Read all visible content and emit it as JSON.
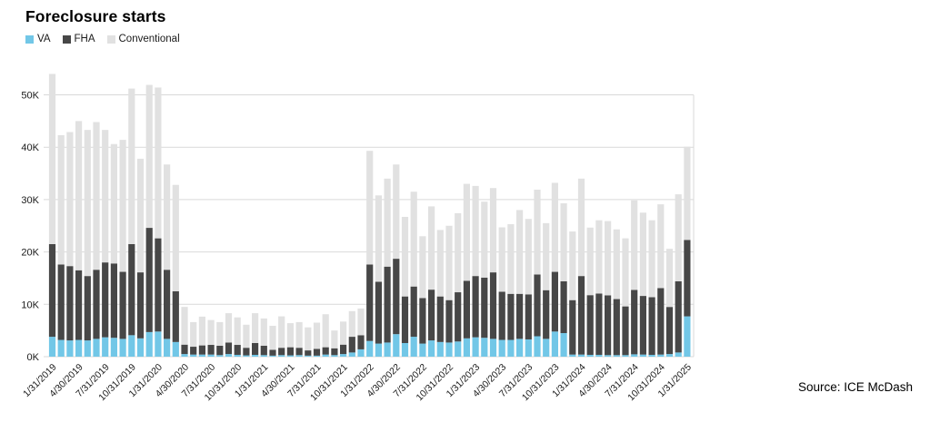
{
  "title": "Foreclosure starts",
  "source": "Source: ICE McDash",
  "legend": [
    {
      "label": "VA",
      "color": "#72C7E7"
    },
    {
      "label": "FHA",
      "color": "#474747"
    },
    {
      "label": "Conventional",
      "color": "#E1E1E1"
    }
  ],
  "colors": {
    "grid": "#D9D9D9",
    "axis_text": "#1a1a1a",
    "background": "#ffffff"
  },
  "chart_data": {
    "type": "bar",
    "stacked": true,
    "title": "Foreclosure starts",
    "unit": "thousands",
    "grid": "horizontal",
    "legend_position": "top-left",
    "ylim": [
      0,
      55
    ],
    "y_tick_labels": [
      "0K",
      "10K",
      "20K",
      "30K",
      "40K",
      "50K"
    ],
    "y_tick_values": [
      0,
      10,
      20,
      30,
      40,
      50
    ],
    "x_tick_every_n_bars": 3,
    "x_tick_labels": [
      "1/31/2019",
      "4/30/2019",
      "7/31/2019",
      "10/31/2019",
      "1/31/2020",
      "4/30/2020",
      "7/31/2020",
      "10/31/2020",
      "1/31/2021",
      "4/30/2021",
      "7/31/2021",
      "10/31/2021",
      "1/31/2022",
      "4/30/2022",
      "7/31/2022",
      "10/31/2022",
      "1/31/2023",
      "4/30/2023",
      "7/31/2023",
      "10/31/2023",
      "1/31/2024",
      "4/30/2024",
      "7/31/2024",
      "10/31/2024",
      "1/31/2025"
    ],
    "series": [
      {
        "name": "VA",
        "color": "#72C7E7",
        "values": [
          3.8,
          3.2,
          3.1,
          3.2,
          3.1,
          3.4,
          3.7,
          3.6,
          3.4,
          4.1,
          3.5,
          4.7,
          4.8,
          3.4,
          2.8,
          0.5,
          0.4,
          0.4,
          0.4,
          0.3,
          0.5,
          0.35,
          0.25,
          0.35,
          0.3,
          0.2,
          0.3,
          0.25,
          0.3,
          0.2,
          0.2,
          0.4,
          0.3,
          0.5,
          0.8,
          1.4,
          3.0,
          2.5,
          2.7,
          4.3,
          2.6,
          3.8,
          2.5,
          3.1,
          2.8,
          2.7,
          2.9,
          3.5,
          3.7,
          3.6,
          3.4,
          3.2,
          3.2,
          3.4,
          3.3,
          3.9,
          3.4,
          4.8,
          4.5,
          0.4,
          0.4,
          0.35,
          0.35,
          0.3,
          0.3,
          0.3,
          0.45,
          0.4,
          0.35,
          0.4,
          0.5,
          0.8,
          7.7
        ]
      },
      {
        "name": "FHA",
        "color": "#474747",
        "values": [
          17.7,
          14.4,
          14.2,
          13.3,
          12.3,
          13.2,
          14.3,
          14.2,
          12.8,
          17.4,
          12.6,
          19.9,
          17.8,
          13.2,
          9.7,
          1.8,
          1.5,
          1.75,
          1.85,
          1.8,
          2.2,
          1.9,
          1.45,
          2.25,
          1.8,
          1.1,
          1.4,
          1.55,
          1.4,
          1.0,
          1.3,
          1.4,
          1.3,
          1.8,
          3.0,
          2.7,
          14.6,
          11.8,
          14.5,
          14.4,
          8.9,
          9.6,
          8.7,
          9.7,
          8.7,
          8.1,
          9.4,
          11.0,
          11.7,
          11.5,
          12.7,
          9.2,
          8.8,
          8.6,
          8.6,
          11.8,
          9.3,
          11.4,
          9.9,
          10.4,
          15.0,
          11.4,
          11.7,
          11.4,
          10.7,
          9.3,
          12.3,
          11.2,
          11.0,
          12.7,
          9.0,
          13.6,
          14.6
        ]
      },
      {
        "name": "Conventional",
        "color": "#E1E1E1",
        "values": [
          32.5,
          24.7,
          25.6,
          28.5,
          27.9,
          28.2,
          25.3,
          22.8,
          25.2,
          29.7,
          21.7,
          27.3,
          28.8,
          20.1,
          20.3,
          7.2,
          4.7,
          5.5,
          4.75,
          4.5,
          5.6,
          5.25,
          4.4,
          5.7,
          5.2,
          4.6,
          6.0,
          4.6,
          4.9,
          4.4,
          5.0,
          6.3,
          3.4,
          4.4,
          4.9,
          5.1,
          21.7,
          16.5,
          16.8,
          18.0,
          15.2,
          18.1,
          11.8,
          15.9,
          12.7,
          14.2,
          15.1,
          18.5,
          17.2,
          14.5,
          16.1,
          12.3,
          13.3,
          16.0,
          14.4,
          16.2,
          12.8,
          17.0,
          14.9,
          13.1,
          18.6,
          12.9,
          14.0,
          14.2,
          13.3,
          13.0,
          17.1,
          15.9,
          14.7,
          16.0,
          11.1,
          16.6,
          17.8
        ]
      }
    ]
  }
}
